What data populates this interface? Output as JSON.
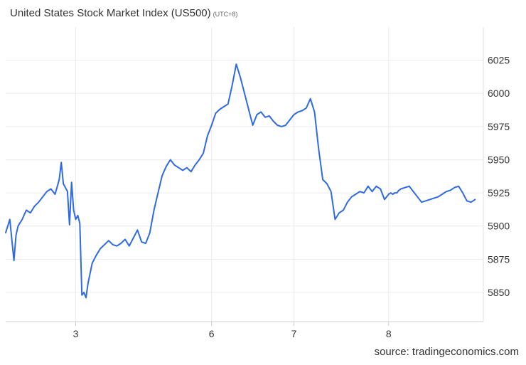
{
  "header": {
    "title": "United States Stock Market Index (US500)",
    "subtitle": "(UTC+8)"
  },
  "footer": {
    "source": "source: tradingeconomics.com"
  },
  "chart_data": {
    "type": "line",
    "title": "United States Stock Market Index (US500)",
    "subtitle": "(UTC+8)",
    "xlabel": "",
    "ylabel": "",
    "x_tick_labels": [
      "3",
      "6",
      "7",
      "8"
    ],
    "x_ticks": [
      1.7,
      5.0,
      7.0,
      9.3
    ],
    "xlim": [
      0,
      11.6
    ],
    "ylim": [
      5828,
      6050
    ],
    "y_ticks": [
      5850,
      5875,
      5900,
      5925,
      5950,
      5975,
      6000,
      6025
    ],
    "grid": true,
    "series": [
      {
        "color": "#2f6ae6",
        "x": [
          0.0,
          0.1,
          0.2,
          0.25,
          0.3,
          0.4,
          0.5,
          0.6,
          0.7,
          0.8,
          0.9,
          1.0,
          1.1,
          1.2,
          1.3,
          1.35,
          1.4,
          1.5,
          1.55,
          1.6,
          1.65,
          1.7,
          1.75,
          1.8,
          1.85,
          1.9,
          1.95,
          2.0,
          2.1,
          2.2,
          2.3,
          2.4,
          2.5,
          2.6,
          2.7,
          2.8,
          2.9,
          3.0,
          3.1,
          3.2,
          3.3,
          3.4,
          3.5,
          3.6,
          3.7,
          3.8,
          3.9,
          4.0,
          4.1,
          4.2,
          4.3,
          4.4,
          4.5,
          4.6,
          4.7,
          4.8,
          4.9,
          5.0,
          5.1,
          5.2,
          5.3,
          5.4,
          5.5,
          5.6,
          5.7,
          5.8,
          5.9,
          6.0,
          6.1,
          6.2,
          6.3,
          6.4,
          6.5,
          6.6,
          6.7,
          6.8,
          6.9,
          7.0,
          7.1,
          7.2,
          7.3,
          7.4,
          7.5,
          7.6,
          7.7,
          7.8,
          7.9,
          8.0,
          8.1,
          8.2,
          8.3,
          8.4,
          8.5,
          8.6,
          8.7,
          8.8,
          8.9,
          9.0,
          9.1,
          9.2,
          9.3,
          9.35,
          9.4,
          9.45,
          9.5,
          9.55,
          9.6,
          9.7,
          9.8,
          9.9,
          10.0,
          10.1,
          10.2,
          10.3,
          10.4,
          10.5,
          10.6,
          10.7,
          10.8,
          10.9,
          11.0,
          11.1,
          11.2,
          11.3,
          11.4
        ],
        "values": [
          5895,
          5905,
          5874,
          5893,
          5900,
          5905,
          5912,
          5910,
          5915,
          5918,
          5922,
          5926,
          5928,
          5924,
          5935,
          5948,
          5932,
          5926,
          5901,
          5933,
          5912,
          5905,
          5908,
          5902,
          5848,
          5850,
          5846,
          5857,
          5872,
          5878,
          5883,
          5886,
          5889,
          5886,
          5885,
          5887,
          5890,
          5885,
          5891,
          5897,
          5888,
          5887,
          5895,
          5912,
          5925,
          5938,
          5945,
          5950,
          5946,
          5944,
          5942,
          5944,
          5941,
          5946,
          5950,
          5955,
          5968,
          5976,
          5985,
          5988,
          5990,
          5992,
          6006,
          6022,
          6012,
          6000,
          5988,
          5976,
          5984,
          5986,
          5982,
          5983,
          5979,
          5976,
          5975,
          5976,
          5980,
          5984,
          5986,
          5987,
          5989,
          5996,
          5986,
          5958,
          5935,
          5932,
          5926,
          5905,
          5910,
          5912,
          5918,
          5922,
          5924,
          5926,
          5925,
          5930,
          5926,
          5930,
          5928,
          5920,
          5924,
          5925,
          5924,
          5925,
          5925,
          5927,
          5928,
          5929,
          5930,
          5926,
          5922,
          5918,
          5919,
          5920,
          5921,
          5922,
          5924,
          5926,
          5927,
          5929,
          5930,
          5925,
          5919,
          5918,
          5920
        ]
      }
    ]
  }
}
